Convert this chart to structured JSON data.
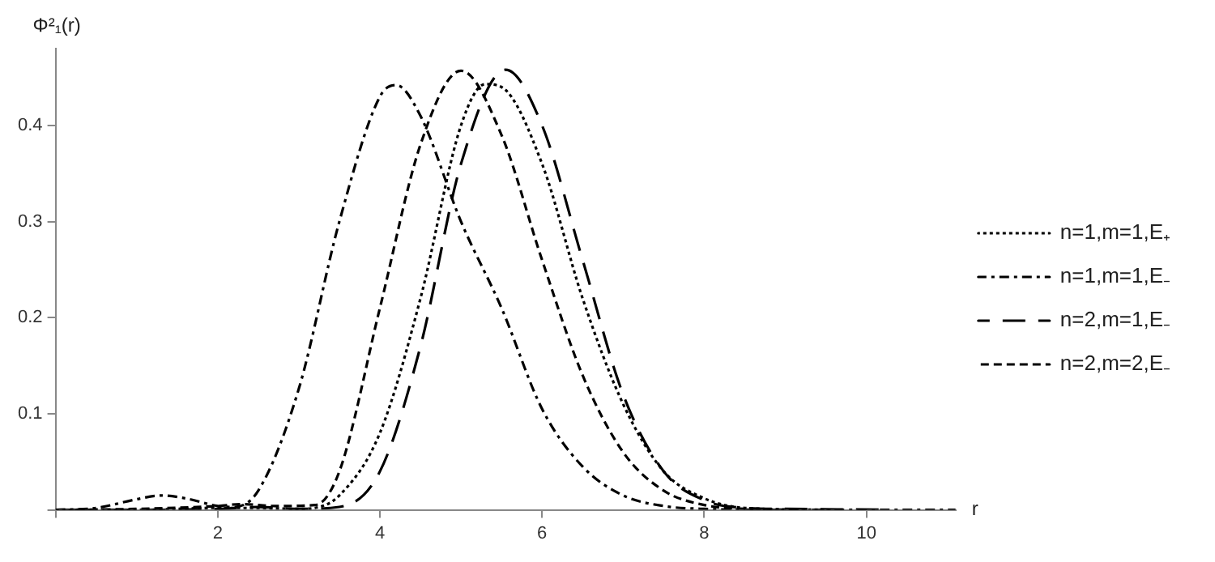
{
  "chart_data": {
    "type": "line",
    "xlabel": "r",
    "ylabel": "Φ²₁(r)",
    "xlim": [
      0,
      11.1
    ],
    "ylim": [
      0,
      0.48
    ],
    "xticks": [
      {
        "value": 0,
        "label": null
      },
      2,
      4,
      6,
      8,
      10
    ],
    "yticks": [
      {
        "value": 0,
        "label": null
      },
      0.1,
      0.2,
      0.3,
      0.4
    ],
    "grid": false,
    "legend": "right",
    "marker": "none",
    "series": [
      {
        "name": "n=1,m=1,E₊",
        "color": "#000000",
        "line_style": "dotted",
        "x": [
          0,
          1,
          2,
          2.5,
          3,
          3.2,
          3.5,
          4,
          4.5,
          5,
          5.3,
          5.5,
          6,
          6.5,
          7,
          7.5,
          8,
          8.5,
          9.6
        ],
        "values": [
          0,
          0,
          0.002,
          0.002,
          0.001,
          0.002,
          0.015,
          0.08,
          0.22,
          0.4,
          0.443,
          0.44,
          0.36,
          0.22,
          0.11,
          0.04,
          0.012,
          0.002,
          0
        ]
      },
      {
        "name": "n=1,m=1,E₋",
        "color": "#000000",
        "line_style": "dashdot",
        "x": [
          0,
          0.5,
          1,
          1.3,
          1.6,
          2,
          2.2,
          2.5,
          3,
          3.5,
          4,
          4.2,
          4.5,
          5,
          5.5,
          6,
          6.5,
          7,
          7.5,
          8,
          9,
          10,
          11.1
        ],
        "values": [
          0,
          0.002,
          0.011,
          0.015,
          0.012,
          0.004,
          0.003,
          0.02,
          0.126,
          0.3,
          0.43,
          0.442,
          0.41,
          0.3,
          0.21,
          0.105,
          0.045,
          0.015,
          0.004,
          0.001,
          0,
          0,
          0
        ]
      },
      {
        "name": "n=2,m=1,E₋",
        "color": "#000000",
        "line_style": "longdash",
        "x": [
          0.2,
          1,
          2,
          2.5,
          3,
          3.5,
          4,
          4.5,
          5,
          5.55,
          6,
          6.5,
          7,
          7.5,
          8,
          8.5,
          9,
          10.3
        ],
        "values": [
          0,
          0,
          0.001,
          0.003,
          0.001,
          0.003,
          0.04,
          0.17,
          0.36,
          0.458,
          0.4,
          0.26,
          0.12,
          0.04,
          0.01,
          0.002,
          0.001,
          0
        ]
      },
      {
        "name": "n=2,m=2,E₋",
        "color": "#000000",
        "line_style": "dashed",
        "x": [
          0.1,
          1,
          2,
          2.3,
          2.7,
          3.2,
          3.5,
          4,
          4.5,
          5,
          5.5,
          6,
          6.5,
          7,
          7.5,
          8,
          8.5,
          9.2
        ],
        "values": [
          0,
          0.001,
          0.004,
          0.006,
          0.004,
          0.005,
          0.04,
          0.21,
          0.38,
          0.457,
          0.39,
          0.26,
          0.14,
          0.06,
          0.02,
          0.005,
          0.001,
          0
        ]
      }
    ]
  }
}
